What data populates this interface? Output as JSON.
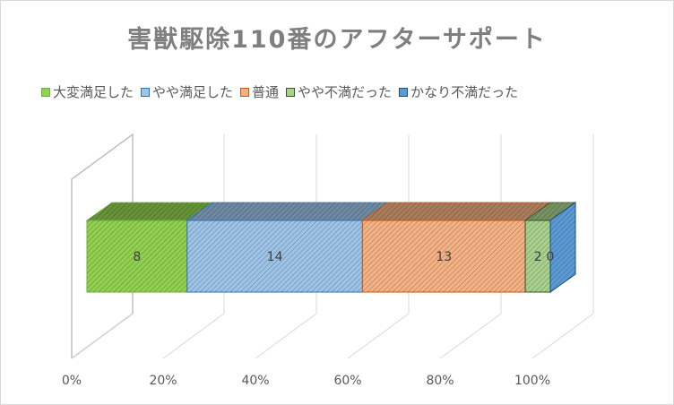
{
  "chart_data": {
    "type": "bar",
    "orientation": "horizontal",
    "stacked": "100%",
    "three_d": true,
    "title": "害獣駆除110番のアフターサポート",
    "categories": [
      ""
    ],
    "series": [
      {
        "name": "大変満足した",
        "values": [
          8
        ],
        "color": "#92d050",
        "border": "#70ad47"
      },
      {
        "name": "やや満足した",
        "values": [
          14
        ],
        "color": "#9dc3e6",
        "border": "#2e75b6"
      },
      {
        "name": "普通",
        "values": [
          13
        ],
        "color": "#f4b183",
        "border": "#c55a11"
      },
      {
        "name": "やや不満だった",
        "values": [
          2
        ],
        "color": "#a9d18e",
        "border": "#375623"
      },
      {
        "name": "かなり不満だった",
        "values": [
          0
        ],
        "color": "#5b9bd5",
        "border": "#1f4e79"
      }
    ],
    "x_ticks": [
      "0%",
      "20%",
      "40%",
      "60%",
      "80%",
      "100%"
    ],
    "xlim": [
      0,
      1
    ],
    "legend_position": "top",
    "gridlines": true
  }
}
